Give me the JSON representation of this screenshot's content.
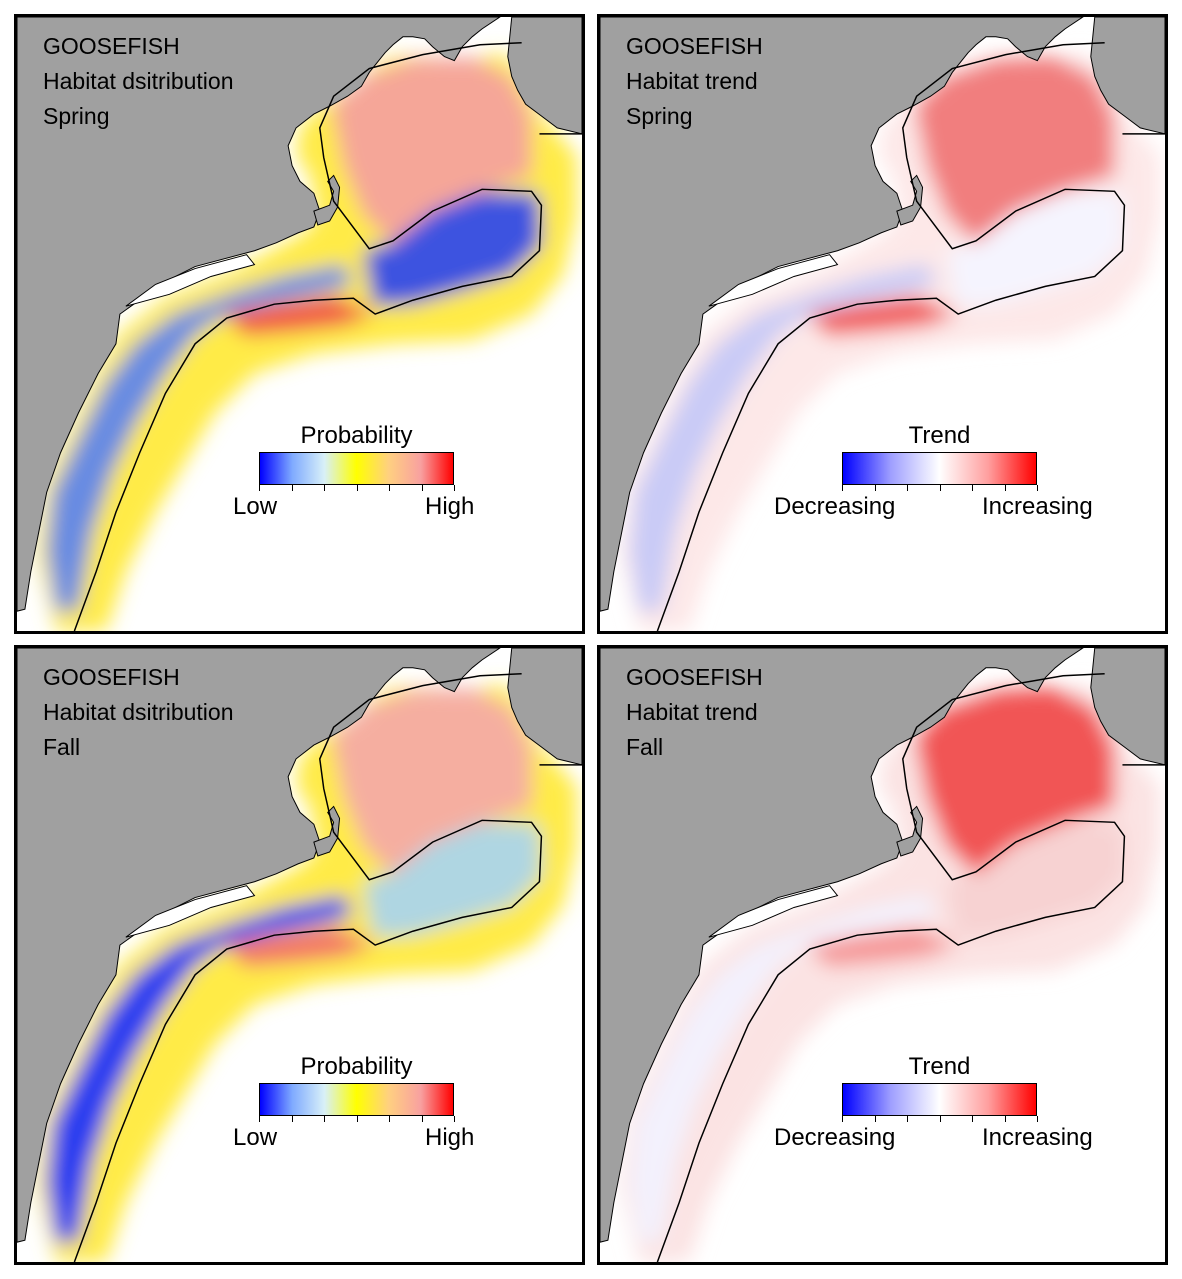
{
  "figure": {
    "panels": [
      {
        "species": "GOOSEFISH",
        "metric": "Habitat dsitribution",
        "season": "Spring",
        "legend": {
          "title": "Probability",
          "low": "Low",
          "high": "High",
          "scale": "probability"
        }
      },
      {
        "species": "GOOSEFISH",
        "metric": "Habitat trend",
        "season": "Spring",
        "legend": {
          "title": "Trend",
          "low": "Decreasing",
          "high": "Increasing",
          "scale": "trend"
        }
      },
      {
        "species": "GOOSEFISH",
        "metric": "Habitat dsitribution",
        "season": "Fall",
        "legend": {
          "title": "Probability",
          "low": "Low",
          "high": "High",
          "scale": "probability"
        }
      },
      {
        "species": "GOOSEFISH",
        "metric": "Habitat trend",
        "season": "Fall",
        "legend": {
          "title": "Trend",
          "low": "Decreasing",
          "high": "Increasing",
          "scale": "trend"
        }
      }
    ],
    "colors": {
      "land": "#a0a0a0",
      "ocean": "#ffffff",
      "probability_scale": [
        "#0000ff",
        "#7faaff",
        "#d8f0f8",
        "#ffff00",
        "#ffd080",
        "#f8a0a0",
        "#ff0000"
      ],
      "trend_scale": [
        "#0000ff",
        "#a0a0ff",
        "#ffffff",
        "#ffa0a0",
        "#ff0000"
      ]
    }
  }
}
